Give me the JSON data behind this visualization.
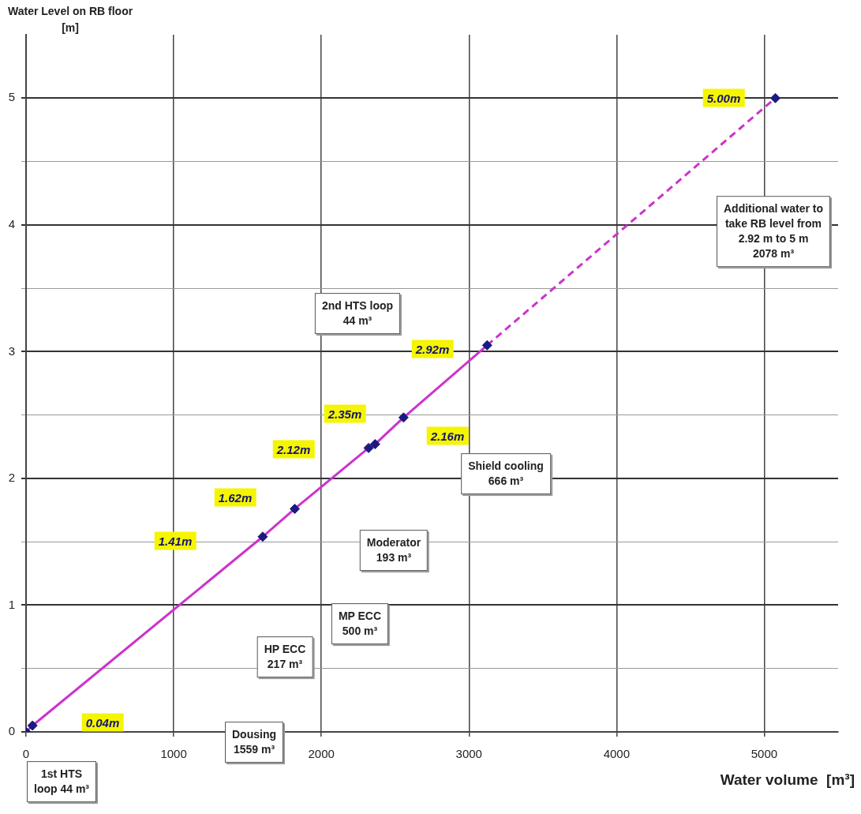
{
  "chart_data": {
    "type": "line",
    "xlabel": "Water volume  [m³]",
    "ylabel": "Water Level on RB floor\n[m]",
    "xlim": [
      0,
      5500
    ],
    "xticks": [
      0,
      1000,
      2000,
      3000,
      4000,
      5000
    ],
    "ylim": [
      0,
      5.5
    ],
    "yticks": [
      0,
      {
        "value": 0.5,
        "label": null
      },
      1,
      {
        "value": 1.5,
        "label": null
      },
      2,
      {
        "value": 2.5,
        "label": null
      },
      3,
      {
        "value": 3.5,
        "label": null
      },
      4,
      {
        "value": 4.5,
        "label": null
      },
      5
    ],
    "grid": true,
    "legend": false,
    "series": [
      {
        "color": "#cc33cc",
        "line_style": "solid",
        "marker": "none",
        "x": [
          0,
          44,
          1603,
          1820,
          2320,
          2364,
          2557,
          3123
        ],
        "values": [
          0,
          0.05,
          1.54,
          1.76,
          2.24,
          2.27,
          2.48,
          3.05
        ]
      },
      {
        "color": "#cc33cc",
        "line_style": "dashed",
        "marker": "none",
        "x": [
          3123,
          5075
        ],
        "values": [
          3.05,
          5.0
        ]
      },
      {
        "type": "scatter",
        "color": "#1a1a80",
        "marker": "diamond",
        "x": [
          0,
          44,
          1603,
          1820,
          2320,
          2364,
          2557,
          3123,
          5075
        ],
        "values": [
          0,
          0.05,
          1.54,
          1.76,
          2.24,
          2.27,
          2.48,
          3.05,
          5.0
        ]
      }
    ],
    "annotations": [
      "0.04m",
      "1.41m",
      "1.62m",
      "2.12m",
      "2.35m",
      "2.16m",
      "2.92m",
      "5.00m",
      "2nd HTS loop\n44 m³",
      "Additional water to\ntake RB level from\n2.92 m to 5 m\n2078 m³",
      "Shield cooling\n666 m³",
      "Moderator\n193 m³",
      "MP ECC\n500 m³",
      "HP ECC\n217 m³",
      "Dousing\n1559 m³",
      "1st HTS\nloop 44 m³"
    ]
  }
}
